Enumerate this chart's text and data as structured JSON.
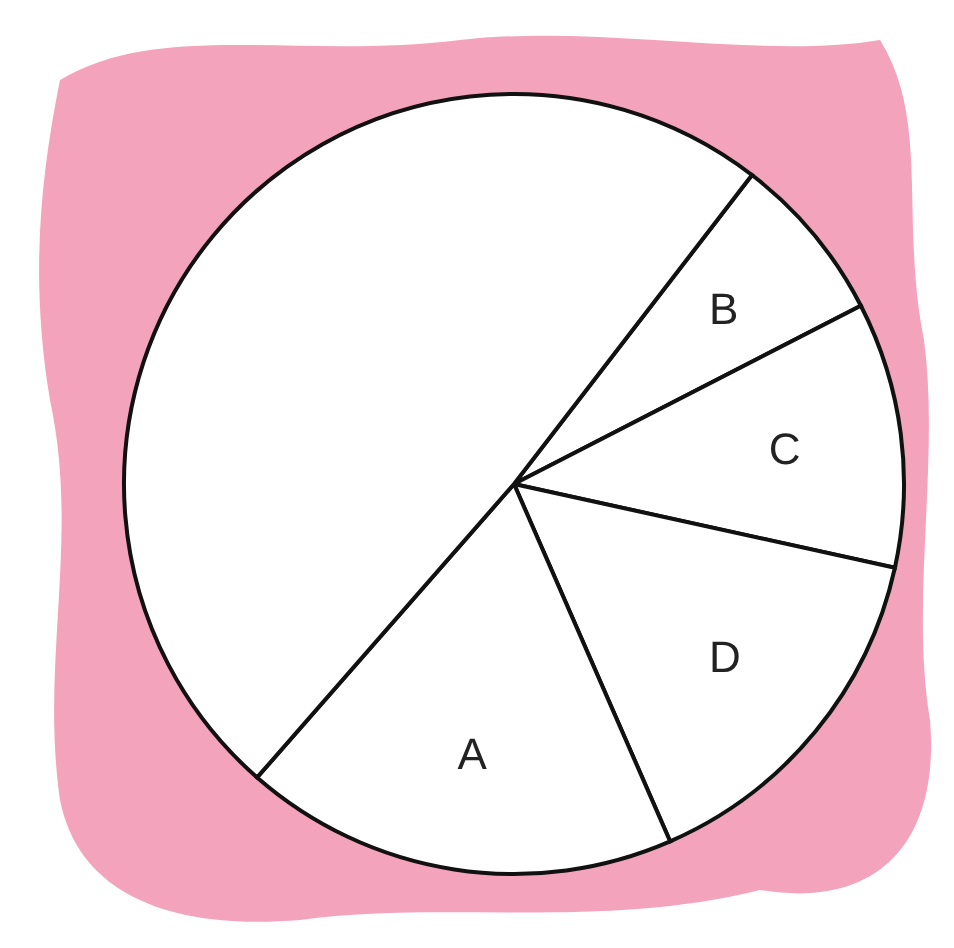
{
  "chart_data": {
    "type": "pie",
    "categories": [
      "B",
      "C",
      "D",
      "A",
      null
    ],
    "values": [
      7,
      11,
      15,
      18,
      49
    ],
    "colors": [
      "#ffffff",
      "#ffffff",
      "#ffffff",
      "#ffffff",
      "#ffffff"
    ]
  }
}
